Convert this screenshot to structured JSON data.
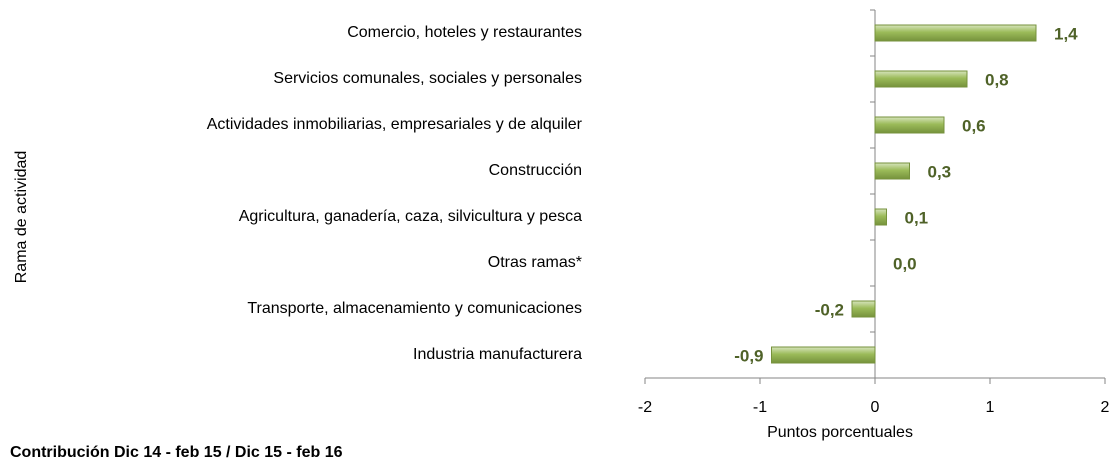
{
  "chart_data": {
    "type": "bar",
    "orientation": "horizontal",
    "title": "Contribución Dic 14 - feb 15 / Dic 15 - feb 16",
    "x_label": "Puntos porcentuales",
    "y_label": "Rama de actividad",
    "categories": [
      "Comercio, hoteles y restaurantes",
      "Servicios comunales, sociales y personales",
      "Actividades inmobiliarias, empresariales y de alquiler",
      "Construcción",
      "Agricultura, ganadería, caza, silvicultura y pesca",
      "Otras ramas*",
      "Transporte, almacenamiento y comunicaciones",
      "Industria manufacturera"
    ],
    "values": [
      1.4,
      0.8,
      0.6,
      0.3,
      0.1,
      0.0,
      -0.2,
      -0.9
    ],
    "value_labels": [
      "1,4",
      "0,8",
      "0,6",
      "0,3",
      "0,1",
      "0,0",
      "-0,2",
      "-0,9"
    ],
    "color": "#9bbb59",
    "xlim": [
      -2,
      2
    ],
    "xticks": [
      -2,
      -1,
      0,
      1,
      2
    ]
  }
}
